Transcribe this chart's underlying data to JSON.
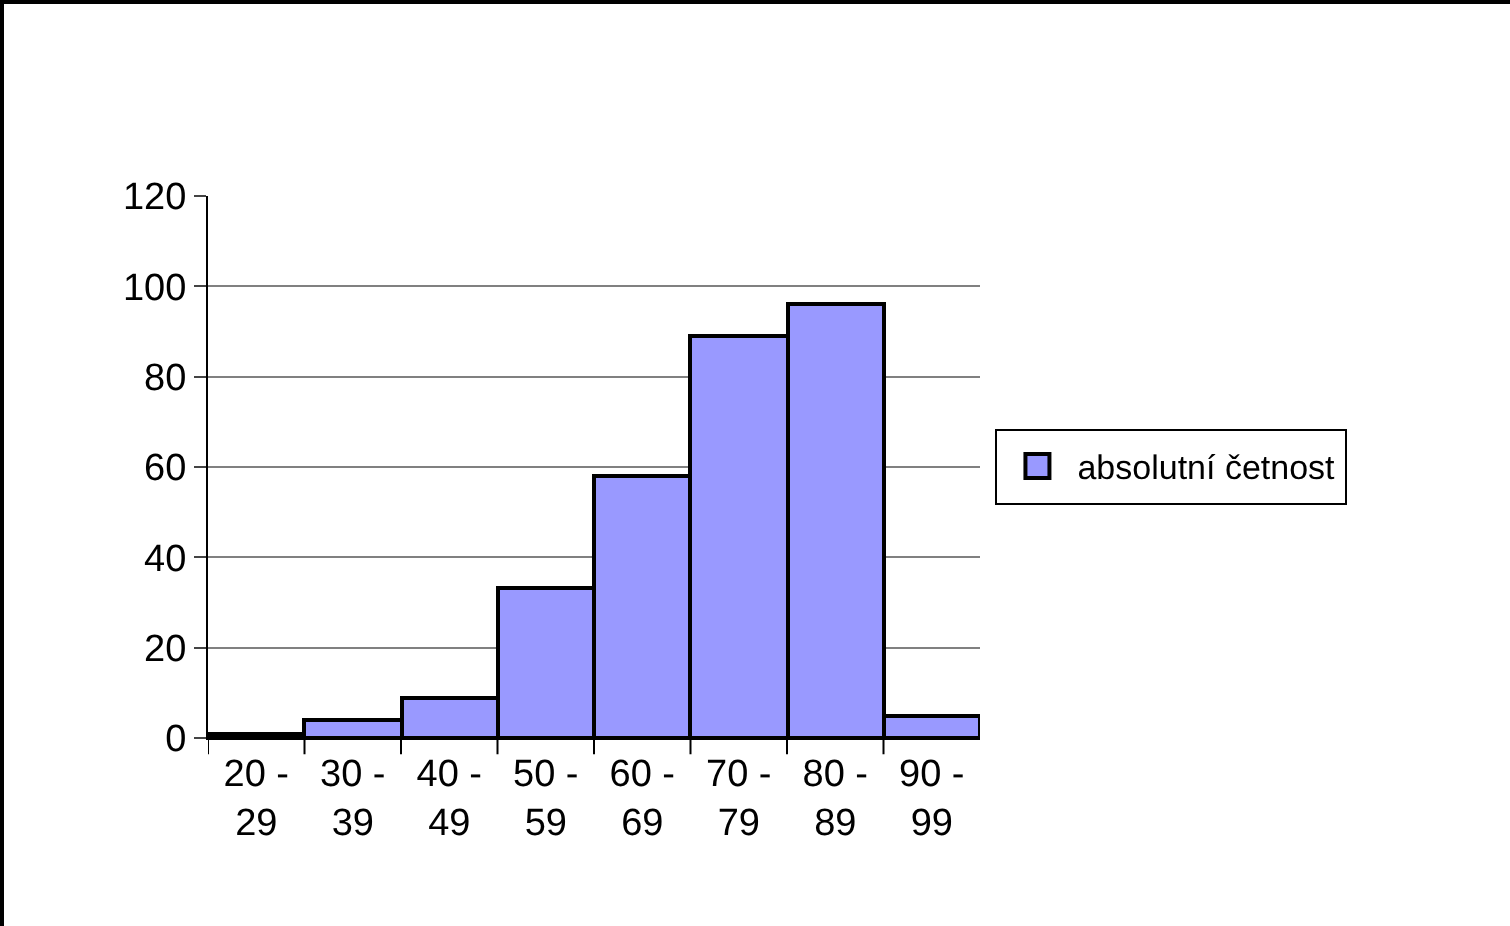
{
  "chart_data": {
    "type": "bar",
    "categories": [
      "20 - 29",
      "30 - 39",
      "40 - 49",
      "50 - 59",
      "60 - 69",
      "70 - 79",
      "80 - 89",
      "90 - 99"
    ],
    "series": [
      {
        "name": "absolutní četnost",
        "color": "#9999ff",
        "values": [
          1,
          4,
          9,
          33,
          58,
          89,
          96,
          5
        ]
      }
    ],
    "ylim": [
      0,
      120
    ],
    "yticks": [
      0,
      20,
      40,
      60,
      80,
      100,
      120
    ],
    "grid": "y",
    "legend": "right"
  }
}
